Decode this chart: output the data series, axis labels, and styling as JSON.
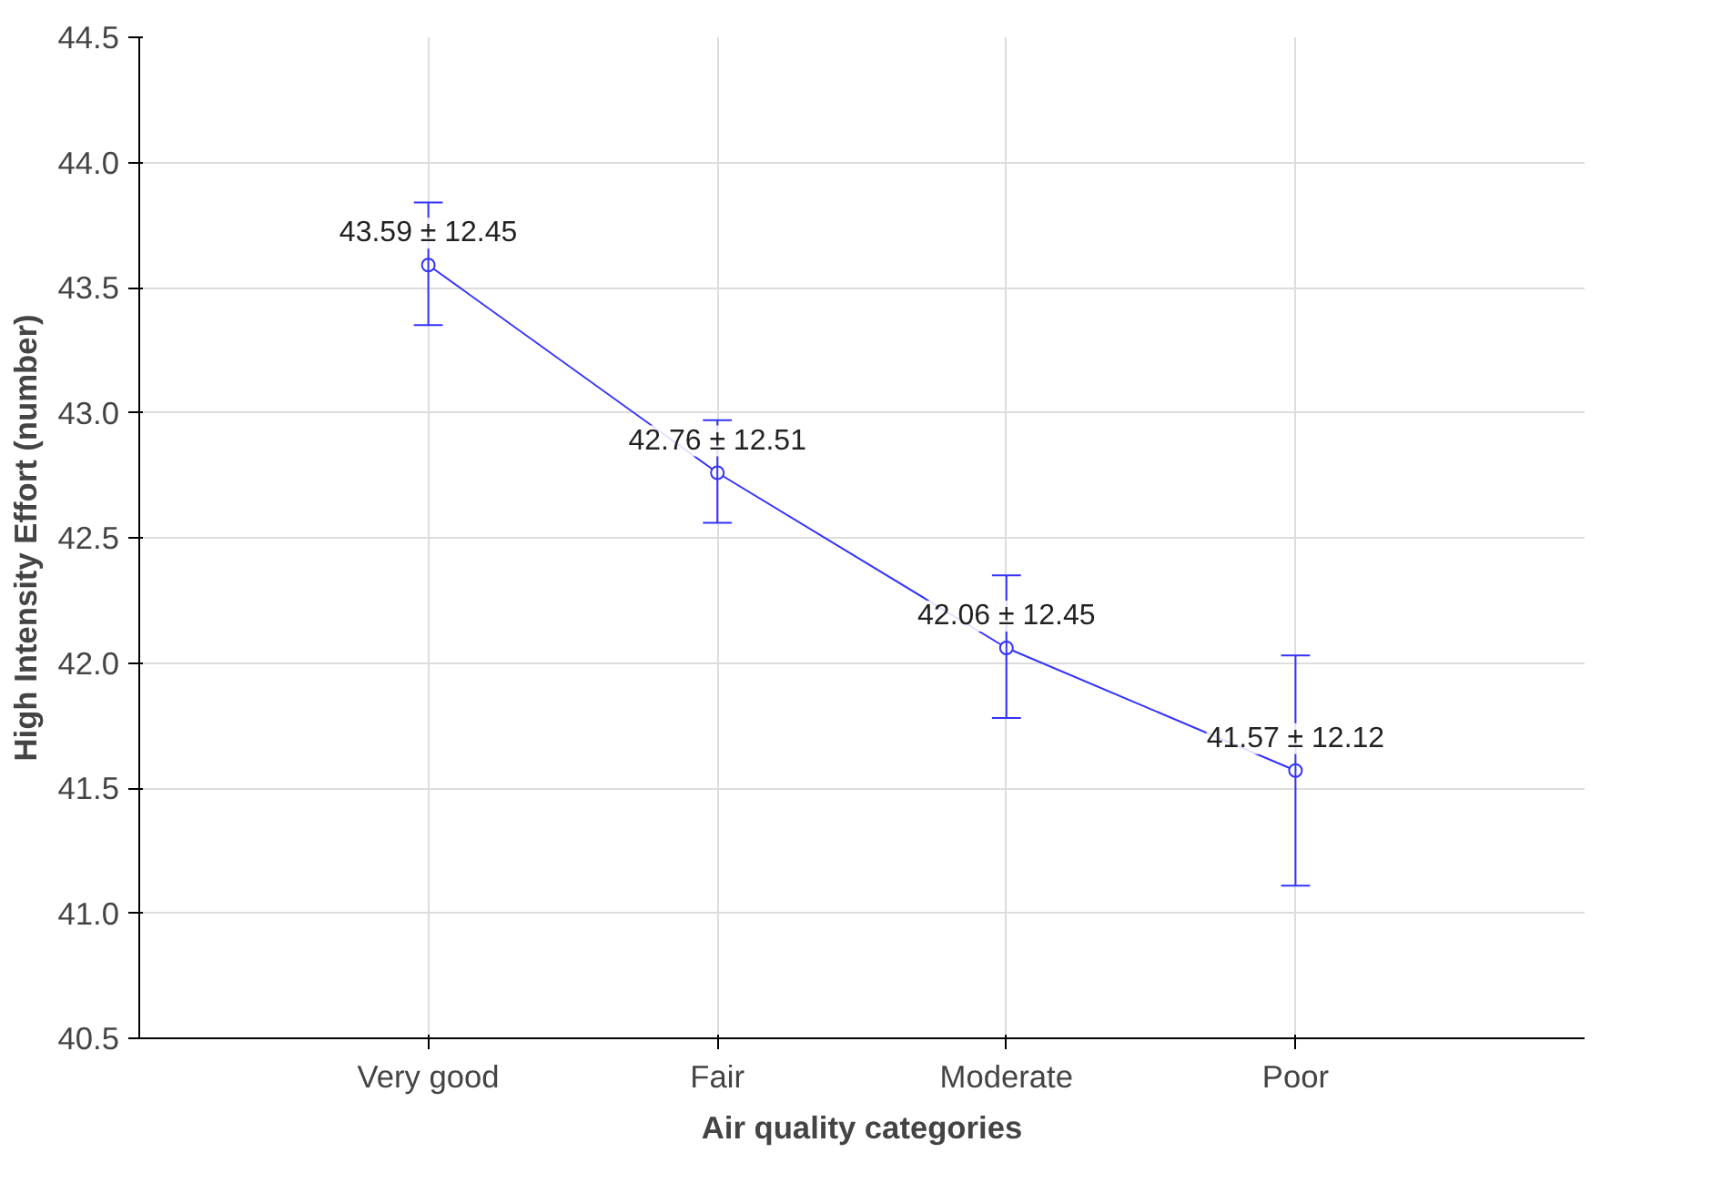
{
  "chart_data": {
    "type": "line",
    "xlabel": "Air quality categories",
    "ylabel": "High Intensity Effort (number)",
    "categories": [
      "Very good",
      "Fair",
      "Moderate",
      "Poor"
    ],
    "series": [
      {
        "color": "#3333ff",
        "values": [
          43.59,
          42.76,
          42.06,
          41.57
        ],
        "errors": [
          [
            43.35,
            43.84
          ],
          [
            42.56,
            42.97
          ],
          [
            41.78,
            42.35
          ],
          [
            41.11,
            42.03
          ]
        ],
        "value_labels": [
          "43.59 ± 12.45",
          "42.76 ± 12.51",
          "42.06 ± 12.45",
          "41.57 ± 12.12"
        ]
      }
    ],
    "ylim": [
      40.5,
      44.5
    ],
    "yticks": [
      40.5,
      {
        "value": 41,
        "label": "41.0"
      },
      41.5,
      {
        "value": 42,
        "label": "42.0"
      },
      42.5,
      {
        "value": 43,
        "label": "43.0"
      },
      43.5,
      {
        "value": 44,
        "label": "44.0"
      },
      44.5
    ],
    "grid": true,
    "marker": "circle",
    "line_style": "solid"
  }
}
